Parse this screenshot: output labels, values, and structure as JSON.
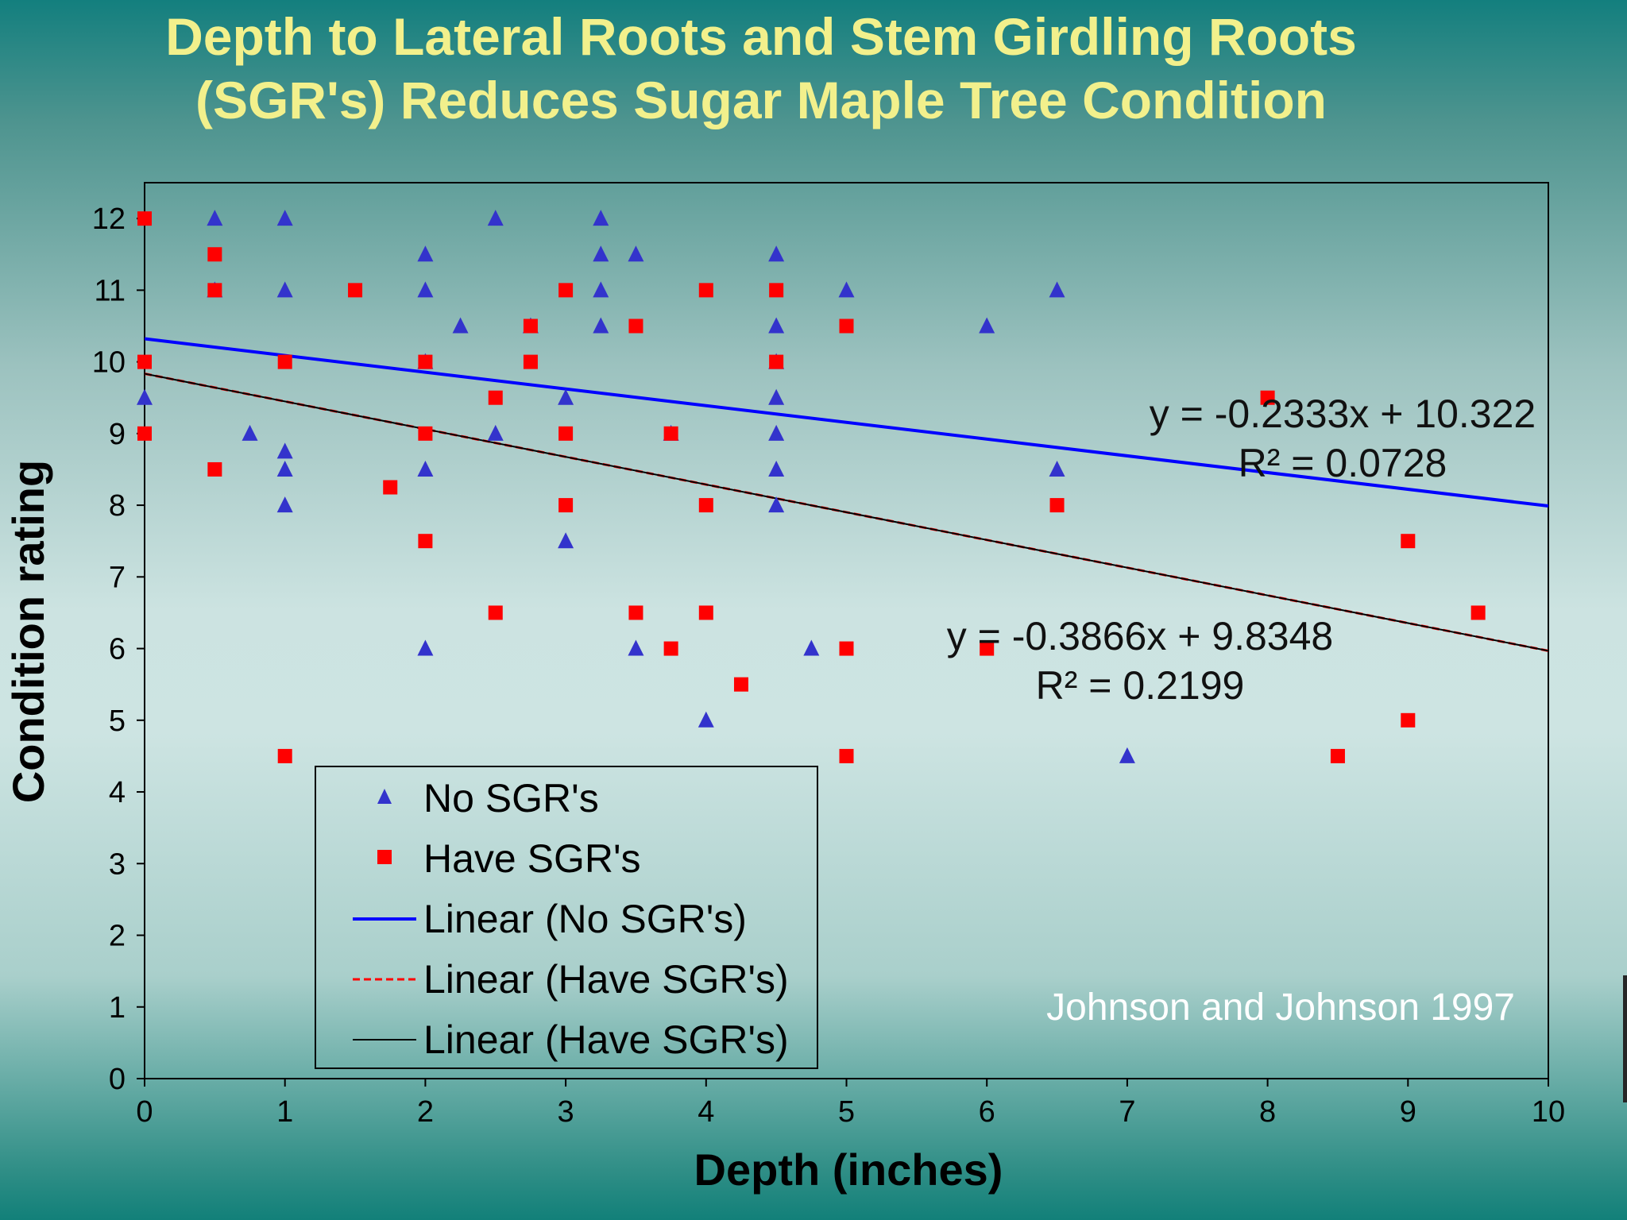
{
  "slide": {
    "title_line1": "Depth to Lateral Roots and Stem Girdling Roots",
    "title_line2": "(SGR's) Reduces Sugar Maple Tree Condition"
  },
  "chart_data": {
    "type": "scatter",
    "title": "Depth to Lateral Roots and Stem Girdling Roots (SGR's) Reduces Sugar Maple Tree Condition",
    "xlabel": "Depth (inches)",
    "ylabel": "Condition rating",
    "xlim": [
      0,
      10
    ],
    "ylim": [
      0,
      12.5
    ],
    "xticks": [
      0,
      1,
      2,
      3,
      4,
      5,
      6,
      7,
      8,
      9,
      10
    ],
    "yticks": [
      0,
      1,
      2,
      3,
      4,
      5,
      6,
      7,
      8,
      9,
      10,
      11,
      12
    ],
    "grid": false,
    "legend_position": "bottom-left",
    "series": [
      {
        "name": "No SGR's",
        "marker": "triangle",
        "color": "#3333cc",
        "points": [
          [
            0,
            9.5
          ],
          [
            0.5,
            12
          ],
          [
            0.5,
            11
          ],
          [
            0.75,
            9
          ],
          [
            1,
            12
          ],
          [
            1,
            11
          ],
          [
            1,
            8.75
          ],
          [
            1,
            8.5
          ],
          [
            1,
            8
          ],
          [
            2,
            11.5
          ],
          [
            2,
            11
          ],
          [
            2,
            10
          ],
          [
            2,
            8.5
          ],
          [
            2,
            6
          ],
          [
            2.25,
            10.5
          ],
          [
            2.5,
            12
          ],
          [
            2.5,
            9
          ],
          [
            2.75,
            10.5
          ],
          [
            3,
            9.5
          ],
          [
            3,
            7.5
          ],
          [
            3.25,
            12
          ],
          [
            3.25,
            11.5
          ],
          [
            3.25,
            11
          ],
          [
            3.25,
            10.5
          ],
          [
            3.5,
            11.5
          ],
          [
            3.5,
            6
          ],
          [
            3.75,
            9
          ],
          [
            4,
            5
          ],
          [
            4.5,
            11.5
          ],
          [
            4.5,
            10.5
          ],
          [
            4.5,
            10
          ],
          [
            4.5,
            9.5
          ],
          [
            4.5,
            9
          ],
          [
            4.5,
            8.5
          ],
          [
            4.5,
            8
          ],
          [
            4.75,
            6
          ],
          [
            5,
            11
          ],
          [
            6,
            10.5
          ],
          [
            6.5,
            11
          ],
          [
            6.5,
            8.5
          ],
          [
            7,
            4.5
          ]
        ]
      },
      {
        "name": "Have SGR's",
        "marker": "square",
        "color": "#ff0000",
        "points": [
          [
            0,
            12
          ],
          [
            0,
            10
          ],
          [
            0,
            9
          ],
          [
            0.5,
            11.5
          ],
          [
            0.5,
            11
          ],
          [
            0.5,
            8.5
          ],
          [
            1,
            10
          ],
          [
            1,
            4.5
          ],
          [
            1.5,
            11
          ],
          [
            1.75,
            8.25
          ],
          [
            2,
            10
          ],
          [
            2,
            9
          ],
          [
            2,
            7.5
          ],
          [
            2.5,
            9.5
          ],
          [
            2.5,
            6.5
          ],
          [
            2.75,
            10.5
          ],
          [
            2.75,
            10
          ],
          [
            3,
            11
          ],
          [
            3,
            9
          ],
          [
            3,
            8
          ],
          [
            3.5,
            10.5
          ],
          [
            3.5,
            6.5
          ],
          [
            3.75,
            9
          ],
          [
            3.75,
            6
          ],
          [
            4,
            11
          ],
          [
            4,
            8
          ],
          [
            4,
            6.5
          ],
          [
            4.25,
            5.5
          ],
          [
            4.5,
            11
          ],
          [
            4.5,
            10
          ],
          [
            5,
            10.5
          ],
          [
            5,
            6
          ],
          [
            5,
            4.5
          ],
          [
            6,
            6
          ],
          [
            6.5,
            8
          ],
          [
            8,
            9.5
          ],
          [
            8.5,
            4.5
          ],
          [
            9,
            7.5
          ],
          [
            9,
            5
          ],
          [
            9.5,
            6.5
          ]
        ]
      }
    ],
    "trendlines": [
      {
        "name": "Linear (No SGR's)",
        "slope": -0.2333,
        "intercept": 10.322,
        "color": "#0000ff",
        "style": "solid",
        "equation": "y = -0.2333x + 10.322",
        "r2": "R² = 0.0728"
      },
      {
        "name": "Linear (Have SGR's)",
        "slope": -0.3866,
        "intercept": 9.8348,
        "color": "#ff0000",
        "style": "dashed",
        "equation": "y = -0.3866x + 9.8348",
        "r2": "R² = 0.2199"
      },
      {
        "name": "Linear (Have SGR's)",
        "slope": -0.3866,
        "intercept": 9.8348,
        "color": "#000000",
        "style": "solid"
      }
    ],
    "annotations": {
      "credit": "Johnson and Johnson 1997"
    }
  }
}
